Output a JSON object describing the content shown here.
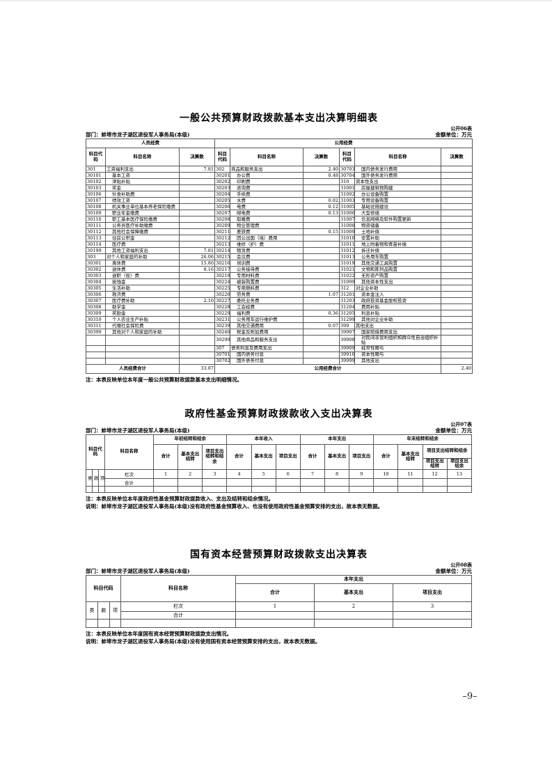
{
  "page": {
    "page_number": "–9–"
  },
  "table1": {
    "title": "一般公共预算财政拨款基本支出决算明细表",
    "table_code": "公开06表",
    "unit_label": "金额单位：万元",
    "department": "部门：蚌埠市龙子湖区退役军人事务局(本级)",
    "groups": [
      "人员经费",
      "公用经费"
    ],
    "col_headers": [
      "科目代码",
      "科目名称",
      "决算数"
    ],
    "rows": [
      [
        "301",
        "工资福利支出",
        "7.81",
        "302",
        "商品和服务支出",
        "2.40",
        "30703",
        "国内债务发行费用",
        ""
      ],
      [
        "30101",
        "基本工资",
        "",
        "30201",
        "办公费",
        "0.48",
        "30704",
        "国外债务发行费用",
        ""
      ],
      [
        "30102",
        "津贴补贴",
        "",
        "30202",
        "印刷费",
        "",
        "310",
        "资本性支出",
        ""
      ],
      [
        "30103",
        "奖金",
        "",
        "30203",
        "咨询费",
        "",
        "31001",
        "房屋建筑物购建",
        ""
      ],
      [
        "30106",
        "伙食补助费",
        "",
        "30204",
        "手续费",
        "",
        "31002",
        "办公设备购置",
        ""
      ],
      [
        "30107",
        "绩效工资",
        "",
        "30205",
        "水费",
        "0.02",
        "31003",
        "专用设备购置",
        ""
      ],
      [
        "30108",
        "机关事业单位基本养老保险缴费",
        "",
        "30206",
        "电费",
        "0.12",
        "31005",
        "基础设施建设",
        ""
      ],
      [
        "30109",
        "职业年金缴费",
        "",
        "30207",
        "邮电费",
        "0.13",
        "31006",
        "大型修缮",
        ""
      ],
      [
        "30110",
        "职工基本医疗保险缴费",
        "",
        "30208",
        "取暖费",
        "",
        "31007",
        "信息网络及软件购置更新",
        ""
      ],
      [
        "30111",
        "公务员医疗补助缴费",
        "",
        "30209",
        "物业管理费",
        "",
        "31008",
        "物资储备",
        ""
      ],
      [
        "30112",
        "其他社会保障缴费",
        "",
        "30211",
        "差旅费",
        "0.15",
        "31009",
        "土地补偿",
        ""
      ],
      [
        "30113",
        "住房公积金",
        "",
        "30212",
        "因公出国（境）费用",
        "",
        "31010",
        "安置补助",
        ""
      ],
      [
        "30114",
        "医疗费",
        "",
        "30213",
        "维修（护）费",
        "",
        "31011",
        "地上附着物和青苗补偿",
        ""
      ],
      [
        "30199",
        "其他工资福利支出",
        "7.81",
        "30214",
        "租赁费",
        "",
        "31012",
        "拆迁补偿",
        ""
      ],
      [
        "303",
        "对个人和家庭的补助",
        "26.06",
        "30215",
        "会议费",
        "",
        "31013",
        "公务用车购置",
        ""
      ],
      [
        "30301",
        "离休费",
        "15.80",
        "30216",
        "培训费",
        "",
        "31019",
        "其他交通工具购置",
        ""
      ],
      [
        "30302",
        "退休费",
        "8.16",
        "30217",
        "公务接待费",
        "",
        "31021",
        "文物和陈列品购置",
        ""
      ],
      [
        "30303",
        "退职（役）费",
        "",
        "30218",
        "专用材料费",
        "",
        "31022",
        "无形资产购置",
        ""
      ],
      [
        "30304",
        "抚恤金",
        "",
        "30224",
        "被装购置费",
        "",
        "31099",
        "其他资本性支出",
        ""
      ],
      [
        "30305",
        "生活补助",
        "",
        "30225",
        "专用燃料费",
        "",
        "312",
        "对企业补助",
        ""
      ],
      [
        "30306",
        "救济费",
        "",
        "30226",
        "劳务费",
        "1.07",
        "31201",
        "资本金注入",
        ""
      ],
      [
        "30307",
        "医疗费补助",
        "2.10",
        "30227",
        "委托业务费",
        "",
        "31203",
        "政府投资基金股权投资",
        ""
      ],
      [
        "30308",
        "助学金",
        "",
        "30228",
        "工会经费",
        "",
        "31204",
        "费用补贴",
        ""
      ],
      [
        "30309",
        "奖励金",
        "",
        "30229",
        "福利费",
        "0.36",
        "31205",
        "利息补贴",
        ""
      ],
      [
        "30310",
        "个人农业生产补贴",
        "",
        "30231",
        "公务用车运行维护费",
        "",
        "31299",
        "其他对企业补助",
        ""
      ],
      [
        "30311",
        "代缴社会保险费",
        "",
        "30239",
        "其他交通费用",
        "0.07",
        "399",
        "其他支出",
        ""
      ],
      [
        "30399",
        "其他对个人和家庭的补助",
        "",
        "30240",
        "税金及附加费用",
        "",
        "39907",
        "国家赔偿费用支出",
        ""
      ],
      [
        "",
        "",
        "",
        "30299",
        "其他商品和服务支出",
        "",
        "39908",
        "对民间非营利组织和群众性自治组织补贴",
        ""
      ],
      [
        "",
        "",
        "",
        "307",
        "债务利息及费用支出",
        "",
        "39909",
        "经常性赠与",
        ""
      ],
      [
        "",
        "",
        "",
        "30701",
        "国内债务付息",
        "",
        "39910",
        "资本性赠与",
        ""
      ],
      [
        "",
        "",
        "",
        "30702",
        "国外债务付息",
        "",
        "39999",
        "其他支出",
        ""
      ]
    ],
    "footer": {
      "personnel_label": "人员经费合计",
      "personnel_value": "33.87",
      "public_label": "公用经费合计",
      "public_value": "2.40"
    },
    "note": "注：本表反映单位本年度一般公共预算财政拨款基本支出明细情况。"
  },
  "table2": {
    "title": "政府性基金预算财政拨款收入支出决算表",
    "table_code": "公开07表",
    "unit_label": "金额单位：万元",
    "department": "部门：蚌埠市龙子湖区退役军人事务局(本级)",
    "header": {
      "code": "科目代码",
      "name": "科目名称",
      "g1": "年初结转和结余",
      "g2": "本年收入",
      "g3": "本年支出",
      "g4": "年末结转和结余",
      "c1": "合计",
      "c2": "基本支出结转",
      "c3": "项目支出结转和结余",
      "c4": "合计",
      "c5": "基本支出",
      "c6": "项目支出",
      "c7": "合计",
      "c8": "基本支出",
      "c9": "项目支出",
      "c10": "合计",
      "c11": "基本支出结转",
      "c12_group": "项目支出结转和结余",
      "c12": "项目支出结转",
      "c13": "项目支出结余"
    },
    "code_subcols": [
      "类",
      "款",
      "项"
    ],
    "lanci_label": "栏次",
    "col_numbers": [
      "1",
      "2",
      "3",
      "4",
      "5",
      "6",
      "7",
      "8",
      "9",
      "10",
      "11",
      "12",
      "13"
    ],
    "total_label": "合计",
    "note": "注：本表反映单位本年度政府性基金预算财政拨款收入、支出及结转和结余情况。",
    "explain": "说明：蚌埠市龙子湖区退役军人事务局(本级)没有政府性基金预算收入、也没有使用政府性基金预算安排的支出，故本表无数据。"
  },
  "table3": {
    "title": "国有资本经营预算财政拨款支出决算表",
    "table_code": "公开08表",
    "unit_label": "金额单位：万元",
    "department": "部门：蚌埠市龙子湖区退役军人事务局(本级)",
    "header": {
      "code": "科目代码",
      "name": "科目名称",
      "group": "本年支出",
      "c1": "合计",
      "c2": "基本支出",
      "c3": "项目支出"
    },
    "code_subcols": [
      "类",
      "款",
      "项"
    ],
    "lanci_label": "栏次",
    "col_numbers": [
      "1",
      "2",
      "3"
    ],
    "total_label": "合计",
    "note": "注：本表反映单位本年度国有资本经营预算财政拨款支出情况。",
    "explain": "说明：蚌埠市龙子湖区退役军人事务局(本级)没有使用国有资本经营预算安排的支出，故本表无数据。"
  }
}
